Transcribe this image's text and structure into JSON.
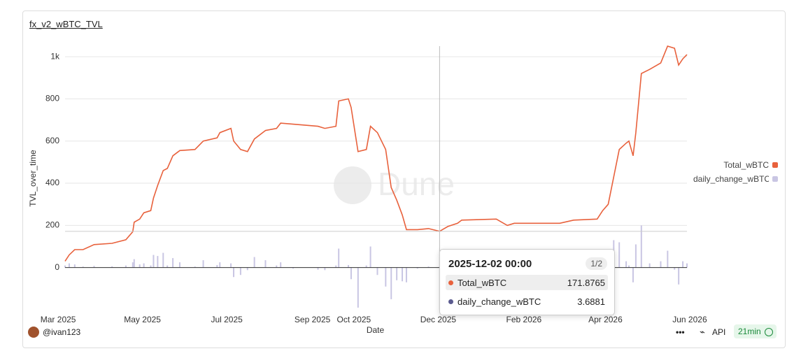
{
  "chart_data": {
    "type": "line-bar",
    "title": "fx_v2_wBTC_TVL",
    "ylabel": "TVL_over_time",
    "xlabel": "Date",
    "x": [
      "2025-03-06",
      "2025-03-09",
      "2025-03-13",
      "2025-03-19",
      "2025-03-27",
      "2025-04-09",
      "2025-04-19",
      "2025-04-24",
      "2025-04-25",
      "2025-04-29",
      "2025-05-02",
      "2025-05-07",
      "2025-05-09",
      "2025-05-12",
      "2025-05-16",
      "2025-05-19",
      "2025-05-23",
      "2025-05-28",
      "2025-06-08",
      "2025-06-14",
      "2025-06-24",
      "2025-06-26",
      "2025-07-04",
      "2025-07-06",
      "2025-07-11",
      "2025-07-16",
      "2025-07-21",
      "2025-07-29",
      "2025-08-06",
      "2025-08-09",
      "2025-08-18",
      "2025-09-05",
      "2025-09-10",
      "2025-09-18",
      "2025-09-20",
      "2025-09-27",
      "2025-09-29",
      "2025-10-04",
      "2025-10-10",
      "2025-10-13",
      "2025-10-18",
      "2025-10-24",
      "2025-10-28",
      "2025-11-01",
      "2025-11-05",
      "2025-11-08",
      "2025-11-16",
      "2025-11-24",
      "2025-12-02",
      "2025-12-08",
      "2025-12-15",
      "2025-12-18",
      "2026-01-12",
      "2026-01-20",
      "2026-01-25",
      "2026-02-27",
      "2026-03-09",
      "2026-03-26",
      "2026-03-30",
      "2026-04-03",
      "2026-04-07",
      "2026-04-11",
      "2026-04-16",
      "2026-04-18",
      "2026-04-21",
      "2026-04-23",
      "2026-04-27",
      "2026-05-03",
      "2026-05-11",
      "2026-05-16",
      "2026-05-21",
      "2026-05-24",
      "2026-05-27",
      "2026-05-30"
    ],
    "series": [
      {
        "name": "Total_wBTC",
        "color": "#e8613c",
        "kind": "line",
        "values": [
          30,
          60,
          85,
          85,
          109,
          115,
          132,
          170,
          215,
          230,
          260,
          270,
          330,
          390,
          460,
          470,
          530,
          555,
          560,
          600,
          615,
          640,
          660,
          600,
          560,
          550,
          610,
          650,
          660,
          685,
          680,
          670,
          660,
          670,
          790,
          800,
          760,
          550,
          560,
          670,
          640,
          560,
          380,
          320,
          250,
          180,
          180,
          185,
          171.8765,
          195,
          210,
          225,
          230,
          200,
          210,
          210,
          225,
          230,
          270,
          300,
          430,
          560,
          590,
          600,
          530,
          640,
          920,
          940,
          970,
          1050,
          1040,
          960,
          990,
          1010
        ]
      },
      {
        "name": "daily_change_wBTC",
        "color": "#c9c6e3",
        "kind": "bar",
        "values": [
          10,
          20,
          15,
          5,
          8,
          6,
          10,
          25,
          40,
          15,
          20,
          10,
          60,
          55,
          70,
          10,
          45,
          25,
          5,
          35,
          12,
          25,
          20,
          -45,
          -35,
          -12,
          50,
          35,
          10,
          25,
          -5,
          -10,
          -12,
          10,
          90,
          12,
          -55,
          -190,
          10,
          100,
          -35,
          -90,
          -150,
          -60,
          -65,
          -70,
          -5,
          5,
          3.6881,
          20,
          8,
          15,
          5,
          -30,
          10,
          3,
          15,
          5,
          40,
          30,
          130,
          120,
          30,
          10,
          -70,
          110,
          200,
          20,
          30,
          80,
          -10,
          -80,
          30,
          20
        ]
      }
    ],
    "xlim": [
      "2025-03-06",
      "2026-05-30"
    ],
    "xticks": [
      {
        "value": "2025-03-01",
        "label": "Mar 2025"
      },
      {
        "value": "2025-05-01",
        "label": "May 2025"
      },
      {
        "value": "2025-07-01",
        "label": "Jul 2025"
      },
      {
        "value": "2025-09-01",
        "label": "Sep 2025"
      },
      {
        "value": "2025-10-01",
        "label": "Oct 2025"
      },
      {
        "value": "2025-12-01",
        "label": "Dec 2025"
      },
      {
        "value": "2026-02-01",
        "label": "Feb 2026"
      },
      {
        "value": "2026-04-01",
        "label": "Apr 2026"
      },
      {
        "value": "2026-06-01",
        "label": "Jun 2026"
      }
    ],
    "ylim": [
      -200,
      1050
    ],
    "yticks": [
      0,
      200,
      400,
      600,
      800,
      {
        "value": 1000,
        "label": "1k"
      }
    ],
    "grid": true,
    "legend": "right"
  },
  "tooltip": {
    "title": "2025-12-02 00:00",
    "page": "1/2",
    "index": 48
  },
  "watermark": "Dune",
  "footer": {
    "user": "@ivan123",
    "more": "•••",
    "api": "API",
    "age": "21min"
  }
}
